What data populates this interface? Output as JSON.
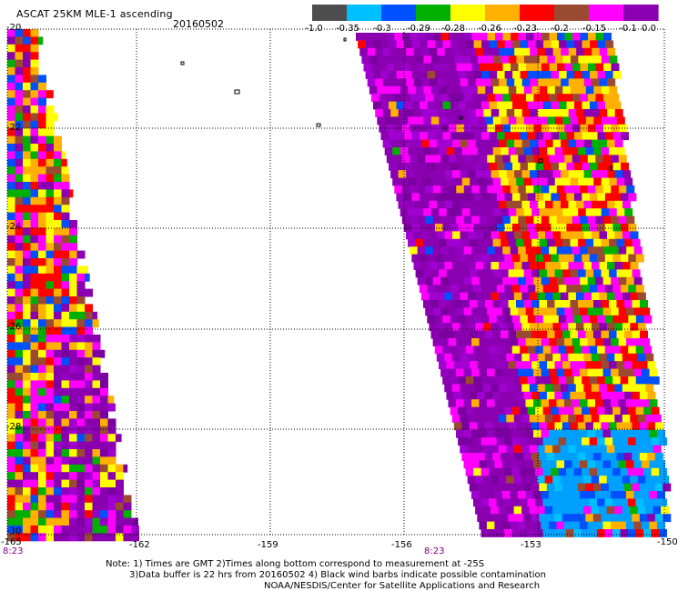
{
  "header": {
    "title": "ASCAT 25KM MLE-1 ascending",
    "date": "20160502"
  },
  "colorbar": {
    "labels": [
      "-1.0",
      "-0.35",
      "-0.3",
      "-0.29",
      "-0.28",
      "-0.26",
      "-0.23",
      "-0.2",
      "-0.15",
      "-0.1",
      "0.0"
    ],
    "colors": [
      "#4d4d4d",
      "#00c0ff",
      "#0050ff",
      "#00b000",
      "#ffff00",
      "#ffb000",
      "#ff0000",
      "#9b4a32",
      "#ff00ff",
      "#8a00b0"
    ]
  },
  "map": {
    "lat_labels": [
      "-20",
      "-22",
      "-24",
      "-26",
      "-28",
      "-30"
    ],
    "lon_labels": [
      "-165",
      "-162",
      "-159",
      "-156",
      "-153",
      "-150"
    ],
    "time_labels": [
      "8:23",
      "8:23"
    ],
    "lat_range": [
      -30,
      -20
    ],
    "lon_range": [
      -165,
      -150
    ],
    "grid": true
  },
  "footer": {
    "note1": "Note: 1) Times are GMT 2)Times along bottom correspond to measurement at -25S",
    "note2": "3)Data buffer is 22 hrs from 20160502 4) Black wind barbs indicate possible contamination",
    "credit": "NOAA/NESDIS/Center for Satellite Applications and Research"
  }
}
